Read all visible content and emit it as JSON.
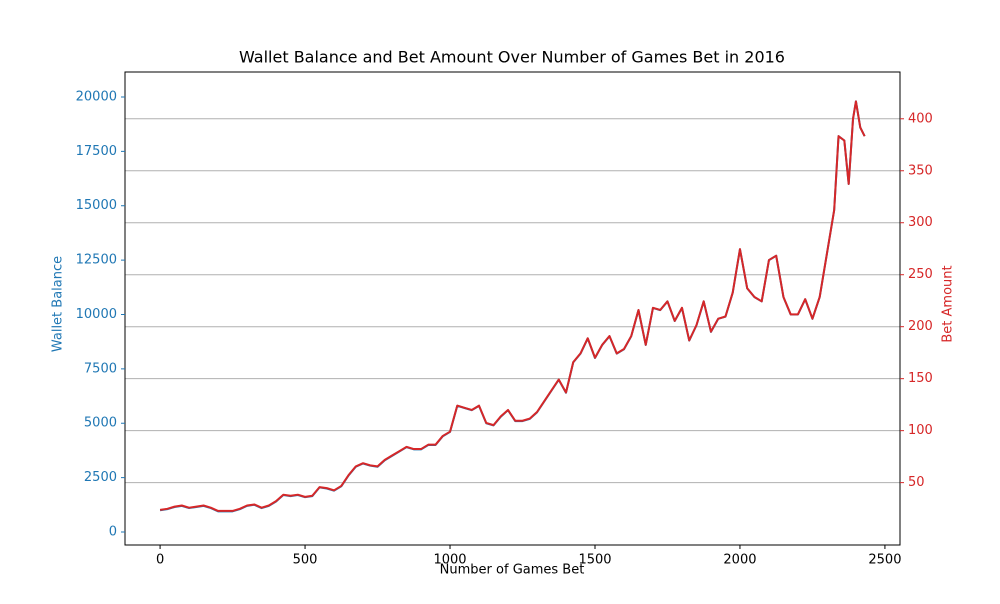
{
  "chart_data": {
    "type": "line",
    "title": "Wallet Balance and Bet Amount Over Number of Games Bet in 2016",
    "xlabel": "Number of Games Bet",
    "ylabel": "Wallet Balance",
    "y2label": "Bet Amount",
    "x": [
      0,
      25,
      50,
      75,
      100,
      125,
      150,
      175,
      200,
      225,
      250,
      275,
      300,
      325,
      350,
      375,
      400,
      425,
      450,
      475,
      500,
      525,
      550,
      575,
      600,
      625,
      650,
      675,
      700,
      725,
      750,
      775,
      800,
      825,
      850,
      875,
      900,
      925,
      950,
      975,
      1000,
      1025,
      1050,
      1075,
      1100,
      1125,
      1150,
      1175,
      1200,
      1225,
      1250,
      1275,
      1300,
      1325,
      1350,
      1375,
      1400,
      1425,
      1450,
      1475,
      1500,
      1525,
      1550,
      1575,
      1600,
      1625,
      1650,
      1675,
      1700,
      1725,
      1750,
      1775,
      1800,
      1825,
      1850,
      1875,
      1900,
      1925,
      1950,
      1975,
      2000,
      2025,
      2050,
      2075,
      2100,
      2125,
      2150,
      2175,
      2200,
      2225,
      2250,
      2275,
      2300,
      2325,
      2340,
      2360,
      2375,
      2390,
      2400,
      2415,
      2430
    ],
    "series": [
      {
        "name": "Wallet Balance",
        "color": "#1f77b4",
        "axis": "y",
        "values": [
          1000,
          1050,
          1150,
          1200,
          1100,
          1150,
          1200,
          1100,
          950,
          950,
          950,
          1050,
          1200,
          1250,
          1100,
          1200,
          1400,
          1700,
          1650,
          1700,
          1600,
          1650,
          2050,
          2000,
          1900,
          2100,
          2600,
          3000,
          3150,
          3050,
          3000,
          3300,
          3500,
          3700,
          3900,
          3800,
          3800,
          4000,
          4000,
          4400,
          4600,
          5800,
          5700,
          5600,
          5800,
          5000,
          4900,
          5300,
          5600,
          5100,
          5100,
          5200,
          5500,
          6000,
          6500,
          7000,
          6400,
          7800,
          8200,
          8900,
          8000,
          8600,
          9000,
          8200,
          8400,
          9000,
          10200,
          8600,
          10300,
          10200,
          10600,
          9700,
          10300,
          8800,
          9500,
          10600,
          9200,
          9800,
          9900,
          11000,
          13000,
          11200,
          10800,
          10600,
          12500,
          12700,
          10800,
          10000,
          10000,
          10700,
          9800,
          10800,
          12800,
          14800,
          18200,
          18000,
          16000,
          19000,
          19800,
          18600,
          18200
        ]
      },
      {
        "name": "Bet Amount",
        "color": "#d62728",
        "axis": "y2",
        "values": [
          23.8,
          24.8,
          26.9,
          28.0,
          25.9,
          26.9,
          28.0,
          25.9,
          22.8,
          22.8,
          22.8,
          24.8,
          28.0,
          29.0,
          25.9,
          28.0,
          32.2,
          38.4,
          37.4,
          38.4,
          36.3,
          37.4,
          45.7,
          44.7,
          42.6,
          46.8,
          57.2,
          65.6,
          68.7,
          66.6,
          65.6,
          71.9,
          76.1,
          80.2,
          84.4,
          82.3,
          82.3,
          86.5,
          86.5,
          94.9,
          99.0,
          124.1,
          122.0,
          119.9,
          124.1,
          107.4,
          105.3,
          113.7,
          119.9,
          109.5,
          109.5,
          111.6,
          117.9,
          128.3,
          138.8,
          149.2,
          136.7,
          165.9,
          174.3,
          188.9,
          170.1,
          182.6,
          191.0,
          174.3,
          178.5,
          191.0,
          216.1,
          182.6,
          218.2,
          216.1,
          224.4,
          205.6,
          218.2,
          186.8,
          201.5,
          224.4,
          195.2,
          207.7,
          209.8,
          232.8,
          274.6,
          237.0,
          228.6,
          224.4,
          264.1,
          268.3,
          228.6,
          211.9,
          211.9,
          226.5,
          207.7,
          228.6,
          270.4,
          312.2,
          383.3,
          379.1,
          337.3,
          400.0,
          416.7,
          391.6,
          383.3
        ]
      }
    ],
    "xlim": [
      -121,
      2552
    ],
    "xticks": [
      0,
      500,
      1000,
      1500,
      2000,
      2500
    ],
    "ylim": [
      -598,
      21149
    ],
    "yticks": [
      0,
      2500,
      5000,
      7500,
      10000,
      12500,
      15000,
      17500,
      20000
    ],
    "y2lim": [
      -10,
      445
    ],
    "y2ticks": [
      50,
      100,
      150,
      200,
      250,
      300,
      350,
      400
    ],
    "grid": "y2"
  }
}
